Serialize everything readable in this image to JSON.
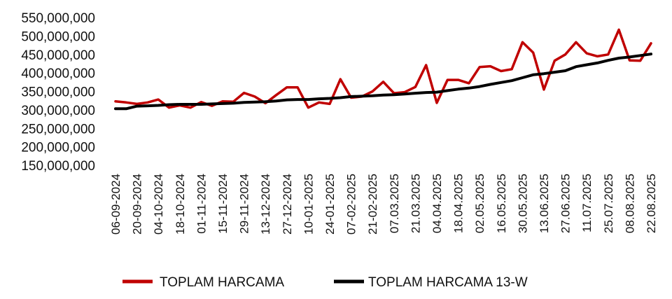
{
  "chart_data": {
    "type": "line",
    "title": "",
    "xlabel": "",
    "ylabel": "",
    "ylim": [
      150000000,
      550000000
    ],
    "y_ticks": [
      150000000,
      200000000,
      250000000,
      300000000,
      350000000,
      400000000,
      450000000,
      500000000,
      550000000
    ],
    "y_tick_labels": [
      "150,000,000",
      "200,000,000",
      "250,000,000",
      "300,000,000",
      "350,000,000",
      "400,000,000",
      "450,000,000",
      "500,000,000",
      "550,000,000"
    ],
    "grid": false,
    "legend_position": "bottom",
    "x": [
      "06-09-2024",
      "13-09-2024",
      "20-09-2024",
      "27-09-2024",
      "04-10-2024",
      "11-10-2024",
      "18-10-2024",
      "25-10-2024",
      "01-11-2024",
      "08-11-2024",
      "15-11-2024",
      "22-11-2024",
      "29-11-2024",
      "06-12-2024",
      "13-12-2024",
      "20-12-2024",
      "27-12-2024",
      "03-01-2025",
      "10-01-2025",
      "17-01-2025",
      "24-01-2025",
      "31-01-2025",
      "07-02-2025",
      "14-02-2025",
      "21-02-2025",
      "28-02-2025",
      "07.03.2025",
      "14.03.2025",
      "21.03.2025",
      "28.03.2025",
      "04.04.2025",
      "11.04.2025",
      "18.04.2025",
      "25.04.2025",
      "02.05.2025",
      "09.05.2025",
      "16.05.2025",
      "23.05.2025",
      "30.05.2025",
      "06.06.2025",
      "13.06.2025",
      "20.06.2025",
      "27.06.2025",
      "04.07.2025",
      "11.07.2025",
      "18.07.2025",
      "25.07.2025",
      "01.08.2025",
      "08.08.2025",
      "15.08.2025",
      "22.08.2025"
    ],
    "x_tick_labels": [
      "06-09-2024",
      "20-09-2024",
      "04-10-2024",
      "18-10-2024",
      "01-11-2024",
      "15-11-2024",
      "29-11-2024",
      "13-12-2024",
      "27-12-2024",
      "10-01-2025",
      "24-01-2025",
      "07-02-2025",
      "21-02-2025",
      "07.03.2025",
      "21.03.2025",
      "04.04.2025",
      "18.04.2025",
      "02.05.2025",
      "16.05.2025",
      "30.05.2025",
      "13.06.2025",
      "27.06.2025",
      "11.07.2025",
      "25.07.2025",
      "08.08.2025",
      "22.08.2025"
    ],
    "series": [
      {
        "name": "TOPLAM HARCAMA",
        "color": "#c00000",
        "values": [
          323000000,
          320000000,
          316000000,
          320000000,
          328000000,
          306000000,
          312000000,
          306000000,
          321000000,
          311000000,
          323000000,
          322000000,
          346000000,
          336000000,
          318000000,
          340000000,
          361000000,
          361000000,
          306000000,
          320000000,
          316000000,
          383000000,
          333000000,
          336000000,
          350000000,
          376000000,
          345000000,
          348000000,
          362000000,
          421000000,
          319000000,
          381000000,
          381000000,
          372000000,
          416000000,
          418000000,
          405000000,
          410000000,
          483000000,
          455000000,
          355000000,
          433000000,
          450000000,
          483000000,
          453000000,
          445000000,
          450000000,
          517000000,
          434000000,
          433000000,
          480000000
        ]
      },
      {
        "name": "TOPLAM HARCAMA 13-W",
        "color": "#000000",
        "values": [
          303000000,
          303000000,
          310000000,
          311000000,
          312000000,
          314000000,
          315000000,
          315000000,
          315000000,
          316000000,
          317000000,
          318000000,
          320000000,
          321000000,
          322000000,
          324000000,
          327000000,
          328000000,
          328000000,
          330000000,
          331000000,
          333000000,
          336000000,
          337000000,
          338000000,
          340000000,
          341000000,
          343000000,
          345000000,
          347000000,
          348000000,
          352000000,
          356000000,
          359000000,
          363000000,
          369000000,
          374000000,
          379000000,
          387000000,
          395000000,
          398000000,
          402000000,
          406000000,
          417000000,
          422000000,
          427000000,
          434000000,
          440000000,
          443000000,
          447000000,
          451000000
        ]
      }
    ]
  }
}
